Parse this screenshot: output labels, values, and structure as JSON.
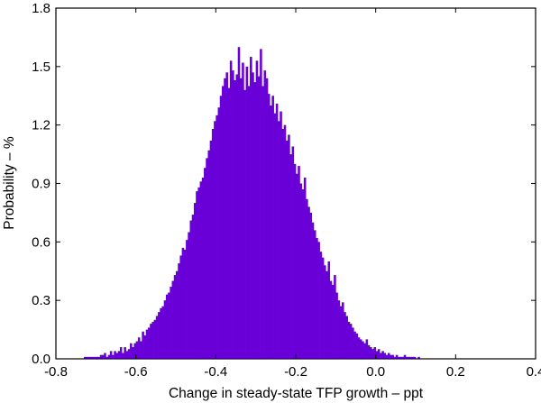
{
  "chart_data": {
    "type": "bar",
    "title": "",
    "xlabel": "Change in steady-state TFP growth – ppt",
    "ylabel": "Probability – %",
    "xlim": [
      -0.8,
      0.4
    ],
    "ylim": [
      0,
      1.8
    ],
    "xticks": [
      -0.8,
      -0.6,
      -0.4,
      -0.2,
      0.0,
      0.2,
      0.4
    ],
    "xtick_labels": [
      "-0.8",
      "-0.6",
      "-0.4",
      "-0.2",
      "0.0",
      "0.2",
      "0.4"
    ],
    "yticks": [
      0,
      0.3,
      0.6,
      0.9,
      1.2,
      1.5,
      1.8
    ],
    "ytick_labels": [
      "0.0",
      "0.3",
      "0.6",
      "0.9",
      "1.2",
      "1.5",
      "1.8"
    ],
    "grid": false,
    "bar_color": "#6a00d8",
    "bin_start": -0.8,
    "bin_width": 0.005,
    "series": [
      {
        "values": [
          0,
          0,
          0,
          0,
          0,
          0,
          0,
          0,
          0,
          0,
          0,
          0,
          0,
          0,
          0.01,
          0.01,
          0.01,
          0.01,
          0.01,
          0.01,
          0.01,
          0.01,
          0.02,
          0.02,
          0.03,
          0.01,
          0.02,
          0.04,
          0.02,
          0.04,
          0.03,
          0.04,
          0.06,
          0.03,
          0.06,
          0.04,
          0.05,
          0.08,
          0.06,
          0.08,
          0.09,
          0.11,
          0.09,
          0.14,
          0.12,
          0.15,
          0.16,
          0.18,
          0.19,
          0.2,
          0.22,
          0.24,
          0.26,
          0.27,
          0.3,
          0.33,
          0.34,
          0.37,
          0.4,
          0.43,
          0.45,
          0.49,
          0.53,
          0.57,
          0.56,
          0.61,
          0.65,
          0.71,
          0.74,
          0.8,
          0.86,
          0.88,
          0.91,
          0.93,
          0.98,
          1.03,
          1.07,
          1.12,
          1.18,
          1.22,
          1.25,
          1.29,
          1.35,
          1.4,
          1.44,
          1.47,
          1.39,
          1.53,
          1.48,
          1.43,
          1.46,
          1.6,
          1.44,
          1.52,
          1.38,
          1.5,
          1.4,
          1.55,
          1.47,
          1.42,
          1.53,
          1.45,
          1.59,
          1.4,
          1.48,
          1.44,
          1.36,
          1.3,
          1.35,
          1.26,
          1.31,
          1.22,
          1.27,
          1.18,
          1.2,
          1.12,
          1.15,
          1.05,
          1.09,
          1.0,
          0.95,
          0.99,
          0.9,
          0.87,
          0.93,
          0.82,
          0.78,
          0.75,
          0.7,
          0.66,
          0.62,
          0.6,
          0.55,
          0.52,
          0.48,
          0.45,
          0.5,
          0.4,
          0.38,
          0.43,
          0.34,
          0.3,
          0.27,
          0.29,
          0.24,
          0.22,
          0.19,
          0.18,
          0.16,
          0.14,
          0.13,
          0.11,
          0.1,
          0.09,
          0.08,
          0.1,
          0.07,
          0.06,
          0.05,
          0.06,
          0.04,
          0.05,
          0.03,
          0.04,
          0.03,
          0.02,
          0.03,
          0.02,
          0.02,
          0.01,
          0.02,
          0.01,
          0.01,
          0.01,
          0.02,
          0.01,
          0.01,
          0.01,
          0.01,
          0.01,
          0,
          0.01,
          0,
          0,
          0,
          0,
          0,
          0,
          0,
          0,
          0,
          0,
          0,
          0,
          0,
          0,
          0,
          0,
          0,
          0,
          0,
          0,
          0,
          0,
          0,
          0,
          0,
          0,
          0,
          0,
          0,
          0,
          0,
          0,
          0,
          0,
          0,
          0,
          0,
          0
        ]
      }
    ]
  }
}
